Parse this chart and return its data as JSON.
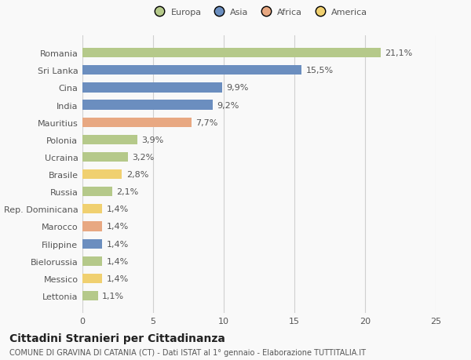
{
  "categories": [
    "Romania",
    "Sri Lanka",
    "Cina",
    "India",
    "Mauritius",
    "Polonia",
    "Ucraina",
    "Brasile",
    "Russia",
    "Rep. Dominicana",
    "Marocco",
    "Filippine",
    "Bielorussia",
    "Messico",
    "Lettonia"
  ],
  "values": [
    21.1,
    15.5,
    9.9,
    9.2,
    7.7,
    3.9,
    3.2,
    2.8,
    2.1,
    1.4,
    1.4,
    1.4,
    1.4,
    1.4,
    1.1
  ],
  "labels": [
    "21,1%",
    "15,5%",
    "9,9%",
    "9,2%",
    "7,7%",
    "3,9%",
    "3,2%",
    "2,8%",
    "2,1%",
    "1,4%",
    "1,4%",
    "1,4%",
    "1,4%",
    "1,4%",
    "1,1%"
  ],
  "colors": [
    "#b5c98a",
    "#6b8ebf",
    "#6b8ebf",
    "#6b8ebf",
    "#e8a882",
    "#b5c98a",
    "#b5c98a",
    "#f0d070",
    "#b5c98a",
    "#f0d070",
    "#e8a882",
    "#6b8ebf",
    "#b5c98a",
    "#f0d070",
    "#b5c98a"
  ],
  "legend_labels": [
    "Europa",
    "Asia",
    "Africa",
    "America"
  ],
  "legend_colors": [
    "#b5c98a",
    "#6b8ebf",
    "#e8a882",
    "#f0d070"
  ],
  "title": "Cittadini Stranieri per Cittadinanza",
  "subtitle": "COMUNE DI GRAVINA DI CATANIA (CT) - Dati ISTAT al 1° gennaio - Elaborazione TUTTITALIA.IT",
  "xlim": [
    0,
    25
  ],
  "xticks": [
    0,
    5,
    10,
    15,
    20,
    25
  ],
  "bg_color": "#f9f9f9",
  "grid_color": "#d0d0d0",
  "bar_height": 0.55,
  "label_fontsize": 8,
  "tick_fontsize": 8,
  "title_fontsize": 10,
  "subtitle_fontsize": 7
}
